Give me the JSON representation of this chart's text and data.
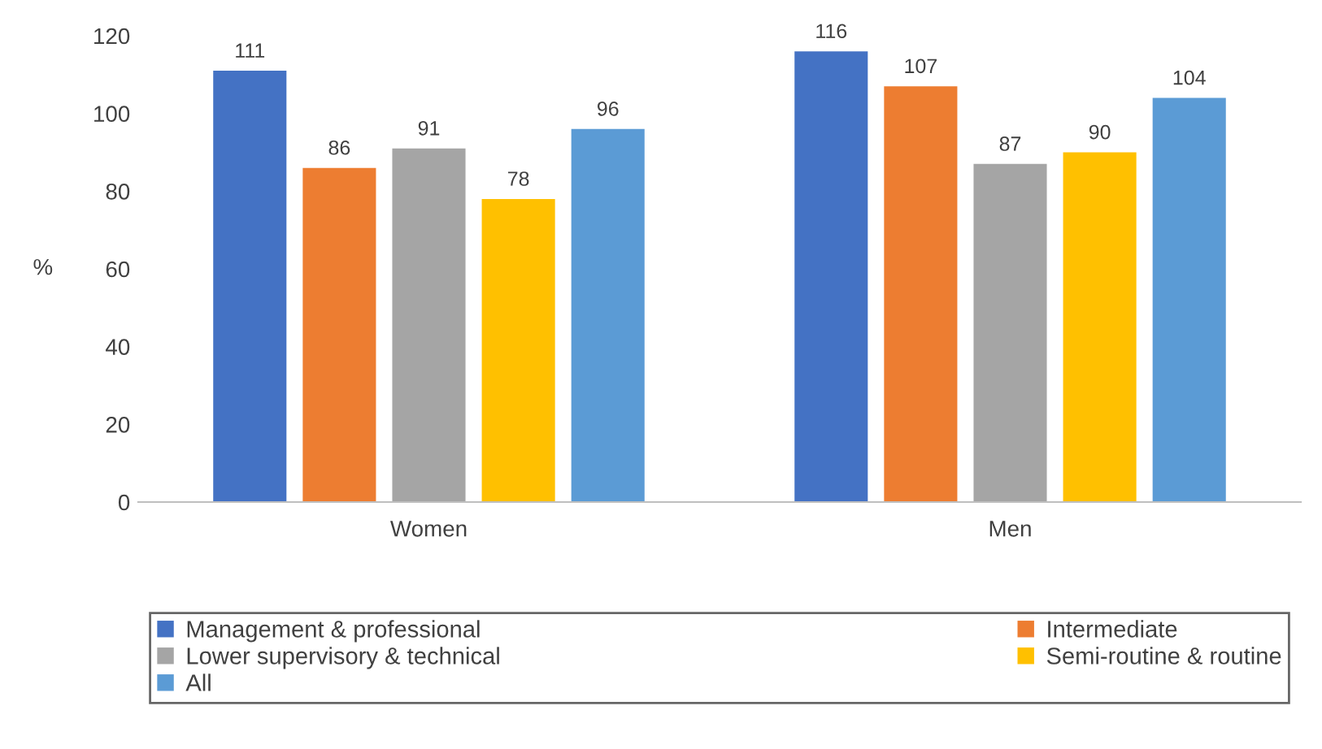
{
  "chart_data": {
    "type": "bar",
    "ylabel": "%",
    "categories": [
      "Women",
      "Men"
    ],
    "series": [
      {
        "name": "Management & professional",
        "color": "#4472c4",
        "values": [
          111,
          116
        ]
      },
      {
        "name": "Intermediate",
        "color": "#ed7d31",
        "values": [
          86,
          107
        ]
      },
      {
        "name": "Lower supervisory & technical",
        "color": "#a5a5a5",
        "values": [
          91,
          87
        ]
      },
      {
        "name": "Semi-routine & routine",
        "color": "#ffc000",
        "values": [
          78,
          90
        ]
      },
      {
        "name": "All",
        "color": "#5b9bd5",
        "values": [
          96,
          104
        ]
      }
    ],
    "ylim": [
      0,
      120
    ],
    "yticks": [
      0,
      20,
      40,
      60,
      80,
      100,
      120
    ],
    "grid": false,
    "legend": "bottom",
    "data_labels": true
  }
}
